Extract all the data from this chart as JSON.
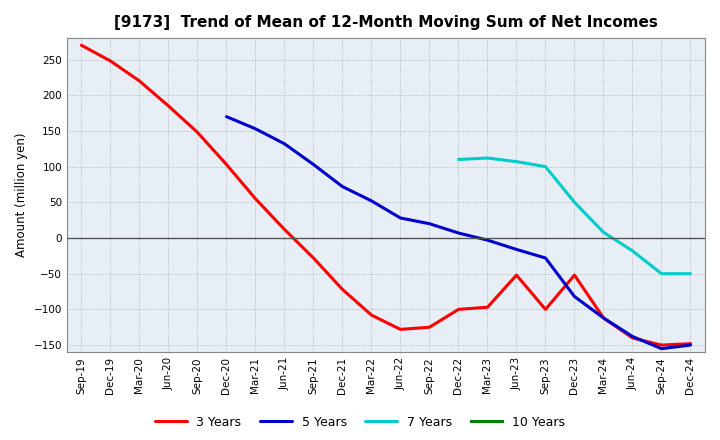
{
  "title": "[9173]  Trend of Mean of 12-Month Moving Sum of Net Incomes",
  "ylabel": "Amount (million yen)",
  "background_color": "#ffffff",
  "plot_bg_color": "#e8eef5",
  "grid_color": "#aaaaaa",
  "zero_line_color": "#555555",
  "ylim": [
    -160,
    280
  ],
  "yticks": [
    -150,
    -100,
    -50,
    0,
    50,
    100,
    150,
    200,
    250
  ],
  "x_labels": [
    "Sep-19",
    "Dec-19",
    "Mar-20",
    "Jun-20",
    "Sep-20",
    "Dec-20",
    "Mar-21",
    "Jun-21",
    "Sep-21",
    "Dec-21",
    "Mar-22",
    "Jun-22",
    "Sep-22",
    "Dec-22",
    "Mar-23",
    "Jun-23",
    "Sep-23",
    "Dec-23",
    "Mar-24",
    "Jun-24",
    "Sep-24",
    "Dec-24"
  ],
  "series": {
    "3 Years": {
      "color": "#ff0000",
      "linewidth": 2.2,
      "x": [
        "Sep-19",
        "Dec-19",
        "Mar-20",
        "Jun-20",
        "Sep-20",
        "Dec-20",
        "Mar-21",
        "Jun-21",
        "Sep-21",
        "Dec-21",
        "Mar-22",
        "Jun-22",
        "Sep-22",
        "Dec-22",
        "Mar-23",
        "Jun-23",
        "Sep-23",
        "Dec-23",
        "Mar-24",
        "Jun-24",
        "Sep-24",
        "Dec-24"
      ],
      "y": [
        270,
        248,
        220,
        185,
        148,
        103,
        55,
        12,
        -28,
        -72,
        -108,
        -128,
        -125,
        -100,
        -97,
        -52,
        -100,
        -52,
        -112,
        -140,
        -150,
        -148
      ]
    },
    "5 Years": {
      "color": "#0000cc",
      "linewidth": 2.2,
      "x": [
        "Dec-20",
        "Mar-21",
        "Jun-21",
        "Sep-21",
        "Dec-21",
        "Mar-22",
        "Jun-22",
        "Sep-22",
        "Dec-22",
        "Mar-23",
        "Jun-23",
        "Sep-23",
        "Dec-23",
        "Mar-24",
        "Jun-24",
        "Sep-24",
        "Dec-24"
      ],
      "y": [
        170,
        153,
        132,
        103,
        72,
        52,
        28,
        20,
        7,
        -3,
        -16,
        -28,
        -82,
        -112,
        -138,
        -155,
        -150
      ]
    },
    "7 Years": {
      "color": "#00cccc",
      "linewidth": 2.2,
      "x": [
        "Dec-22",
        "Mar-23",
        "Jun-23",
        "Sep-23",
        "Dec-23",
        "Mar-24",
        "Jun-24",
        "Sep-24",
        "Dec-24"
      ],
      "y": [
        110,
        112,
        107,
        100,
        50,
        8,
        -18,
        -50,
        -50
      ]
    },
    "10 Years": {
      "color": "#008000",
      "linewidth": 2.2,
      "x": [],
      "y": []
    }
  },
  "legend_fontsize": 9,
  "title_fontsize": 11,
  "tick_fontsize": 7.5,
  "ylabel_fontsize": 8.5
}
